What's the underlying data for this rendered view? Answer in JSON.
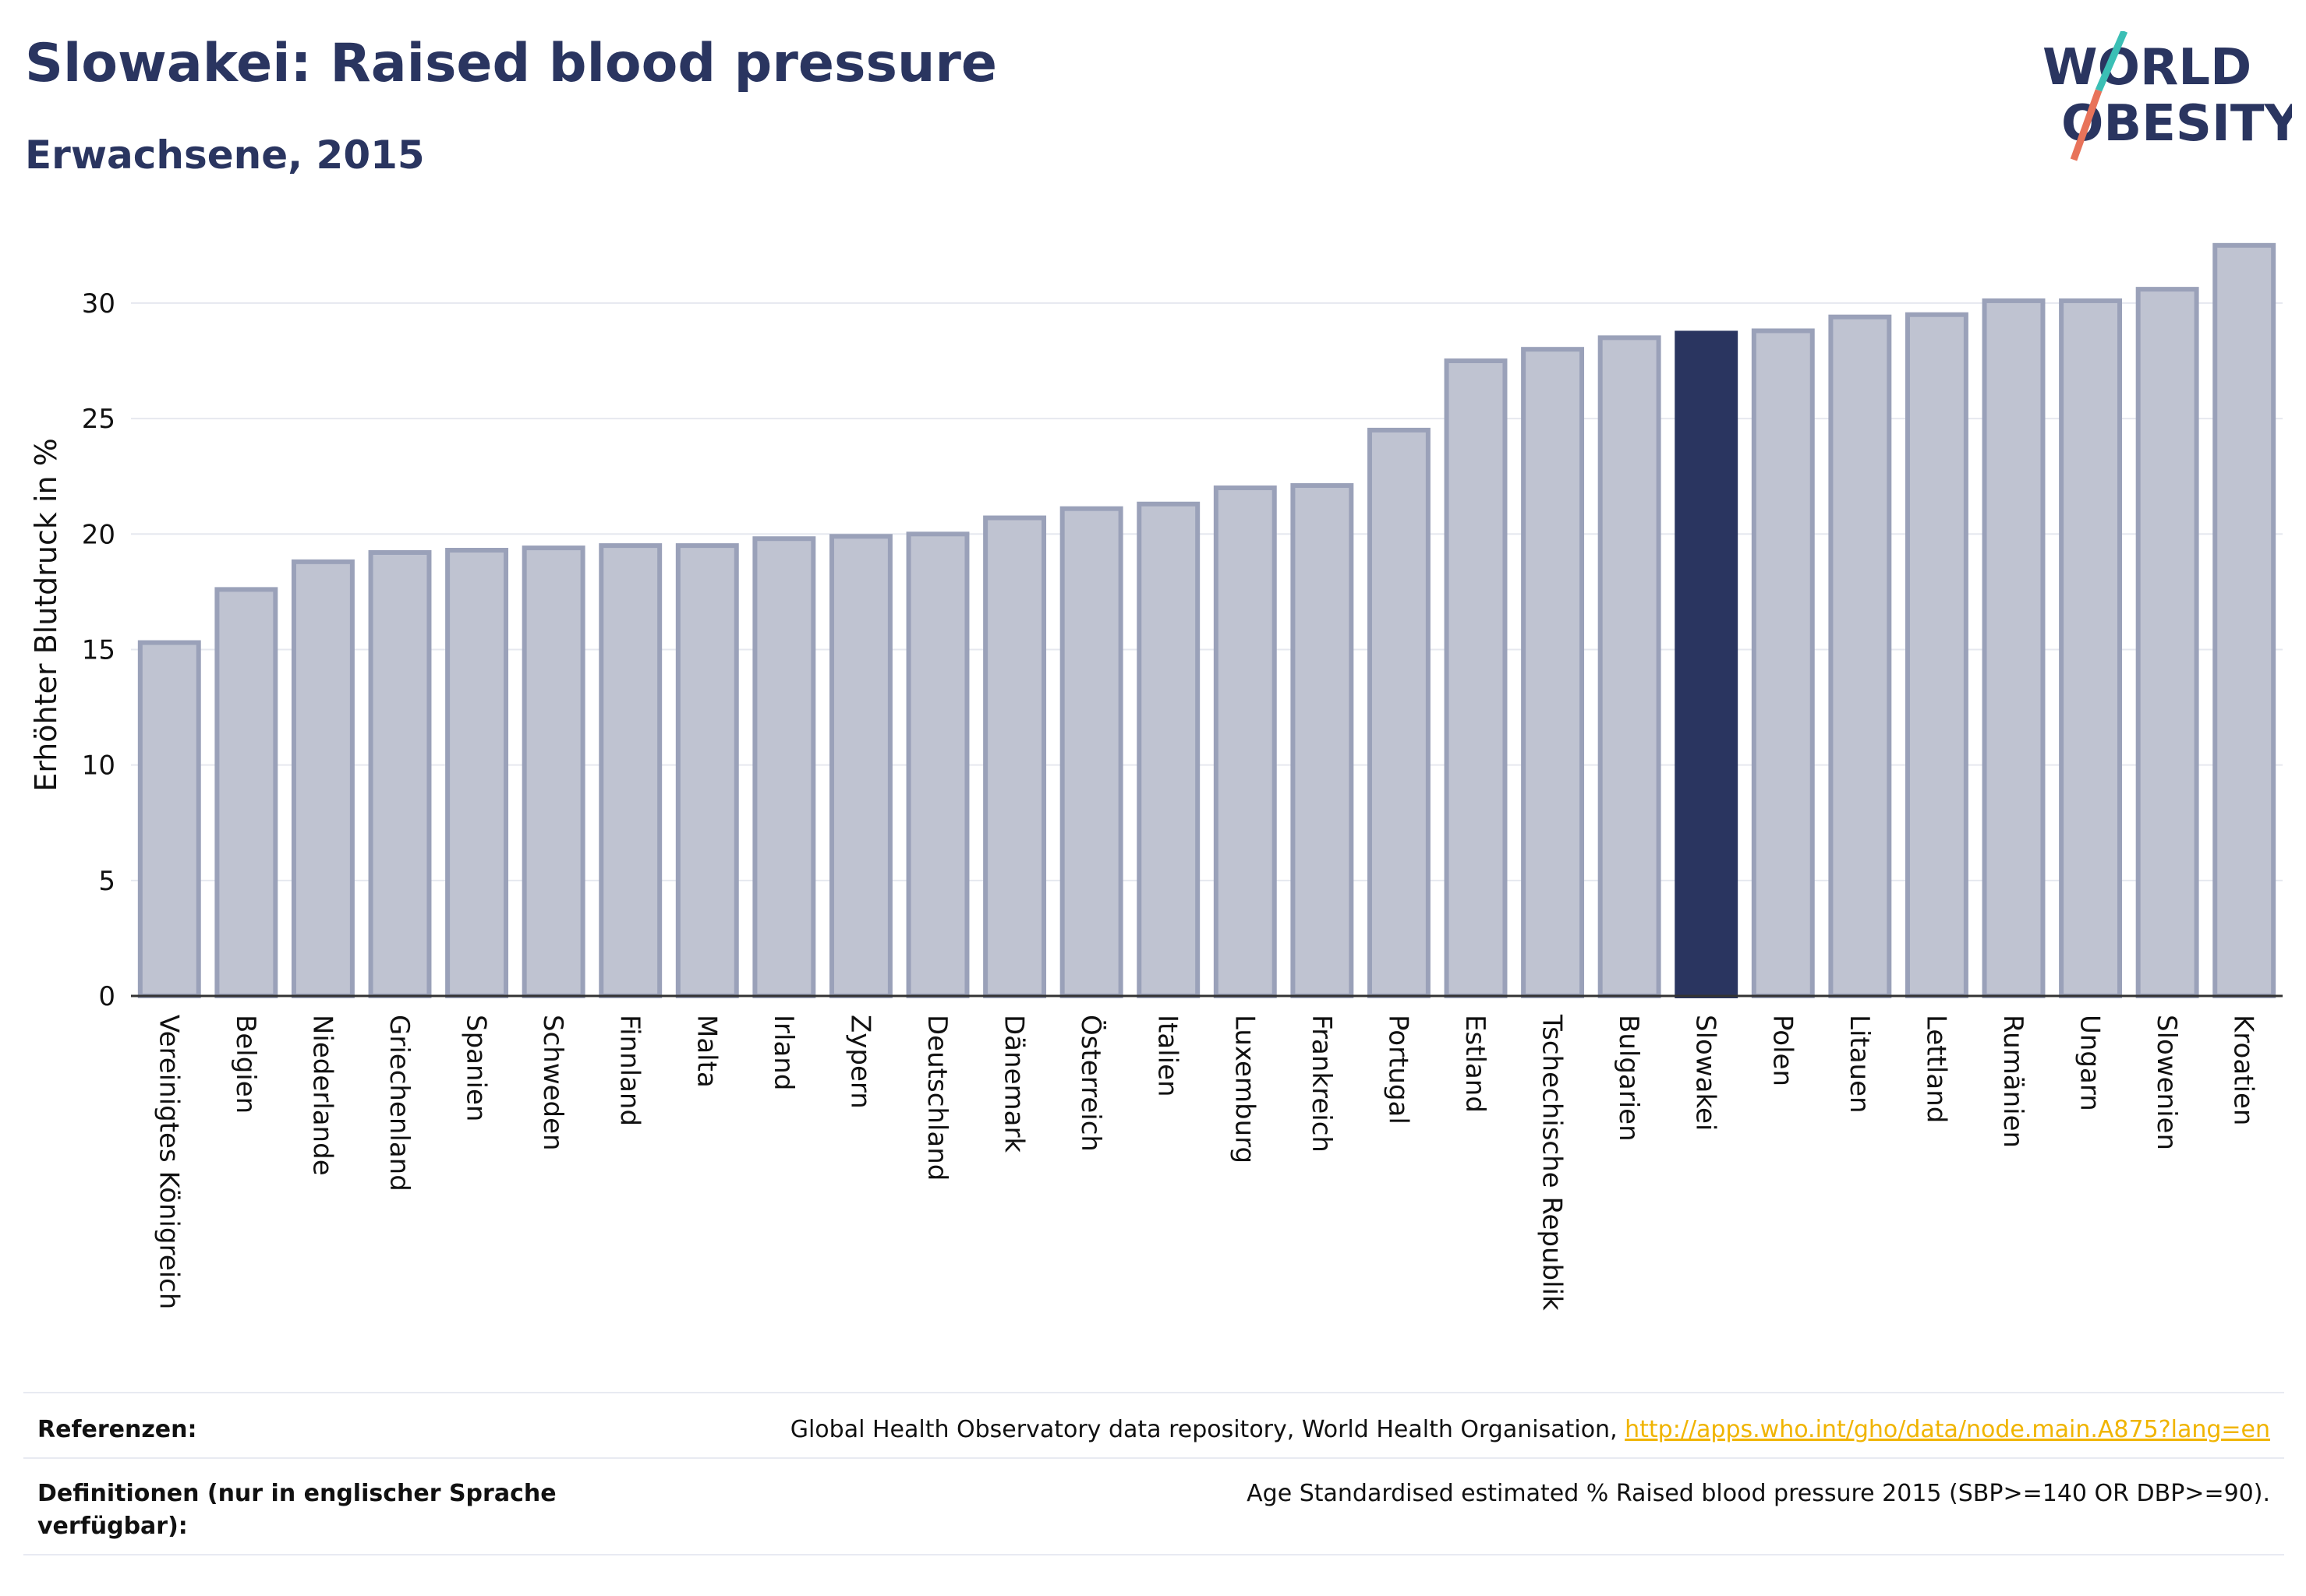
{
  "header": {
    "title": "Slowakei: Raised blood pressure",
    "subtitle": "Erwachsene, 2015",
    "logo_line1": "WORLD",
    "logo_line2": "OBESITY"
  },
  "colors": {
    "bar": "#bfc3d1",
    "bar_border": "#9aa1b9",
    "highlight": "#2a3560",
    "grid": "#e6e8ef",
    "logo_teal": "#3bbfb5",
    "logo_coral": "#e8735a"
  },
  "chart_data": {
    "type": "bar",
    "ylabel": "Erhöhter Blutdruck in %",
    "ylim": [
      0,
      33
    ],
    "yticks": [
      0,
      5,
      10,
      15,
      20,
      25,
      30
    ],
    "grid": true,
    "highlight": "Slowakei",
    "categories": [
      "Vereinigtes Königreich",
      "Belgien",
      "Niederlande",
      "Griechenland",
      "Spanien",
      "Schweden",
      "Finnland",
      "Malta",
      "Irland",
      "Zypern",
      "Deutschland",
      "Dänemark",
      "Österreich",
      "Italien",
      "Luxemburg",
      "Frankreich",
      "Portugal",
      "Estland",
      "Tschechische Republik",
      "Bulgarien",
      "Slowakei",
      "Polen",
      "Litauen",
      "Lettland",
      "Rumänien",
      "Ungarn",
      "Slowenien",
      "Kroatien"
    ],
    "values": [
      15.3,
      17.6,
      18.8,
      19.2,
      19.3,
      19.4,
      19.5,
      19.5,
      19.8,
      19.9,
      20.0,
      20.7,
      21.1,
      21.3,
      22.0,
      22.1,
      24.5,
      27.5,
      28.0,
      28.5,
      28.7,
      28.8,
      29.4,
      29.5,
      30.1,
      30.1,
      30.6,
      32.5
    ]
  },
  "footer": {
    "ref_label": "Referenzen:",
    "ref_text": "Global Health Observatory data repository, World Health Organisation, ",
    "ref_link": "http://apps.who.int/gho/data/node.main.A875?lang=en",
    "def_label": "Definitionen (nur in englischer Sprache verfügbar):",
    "def_text": "Age Standardised estimated % Raised blood pressure 2015 (SBP>=140 OR DBP>=90)."
  }
}
